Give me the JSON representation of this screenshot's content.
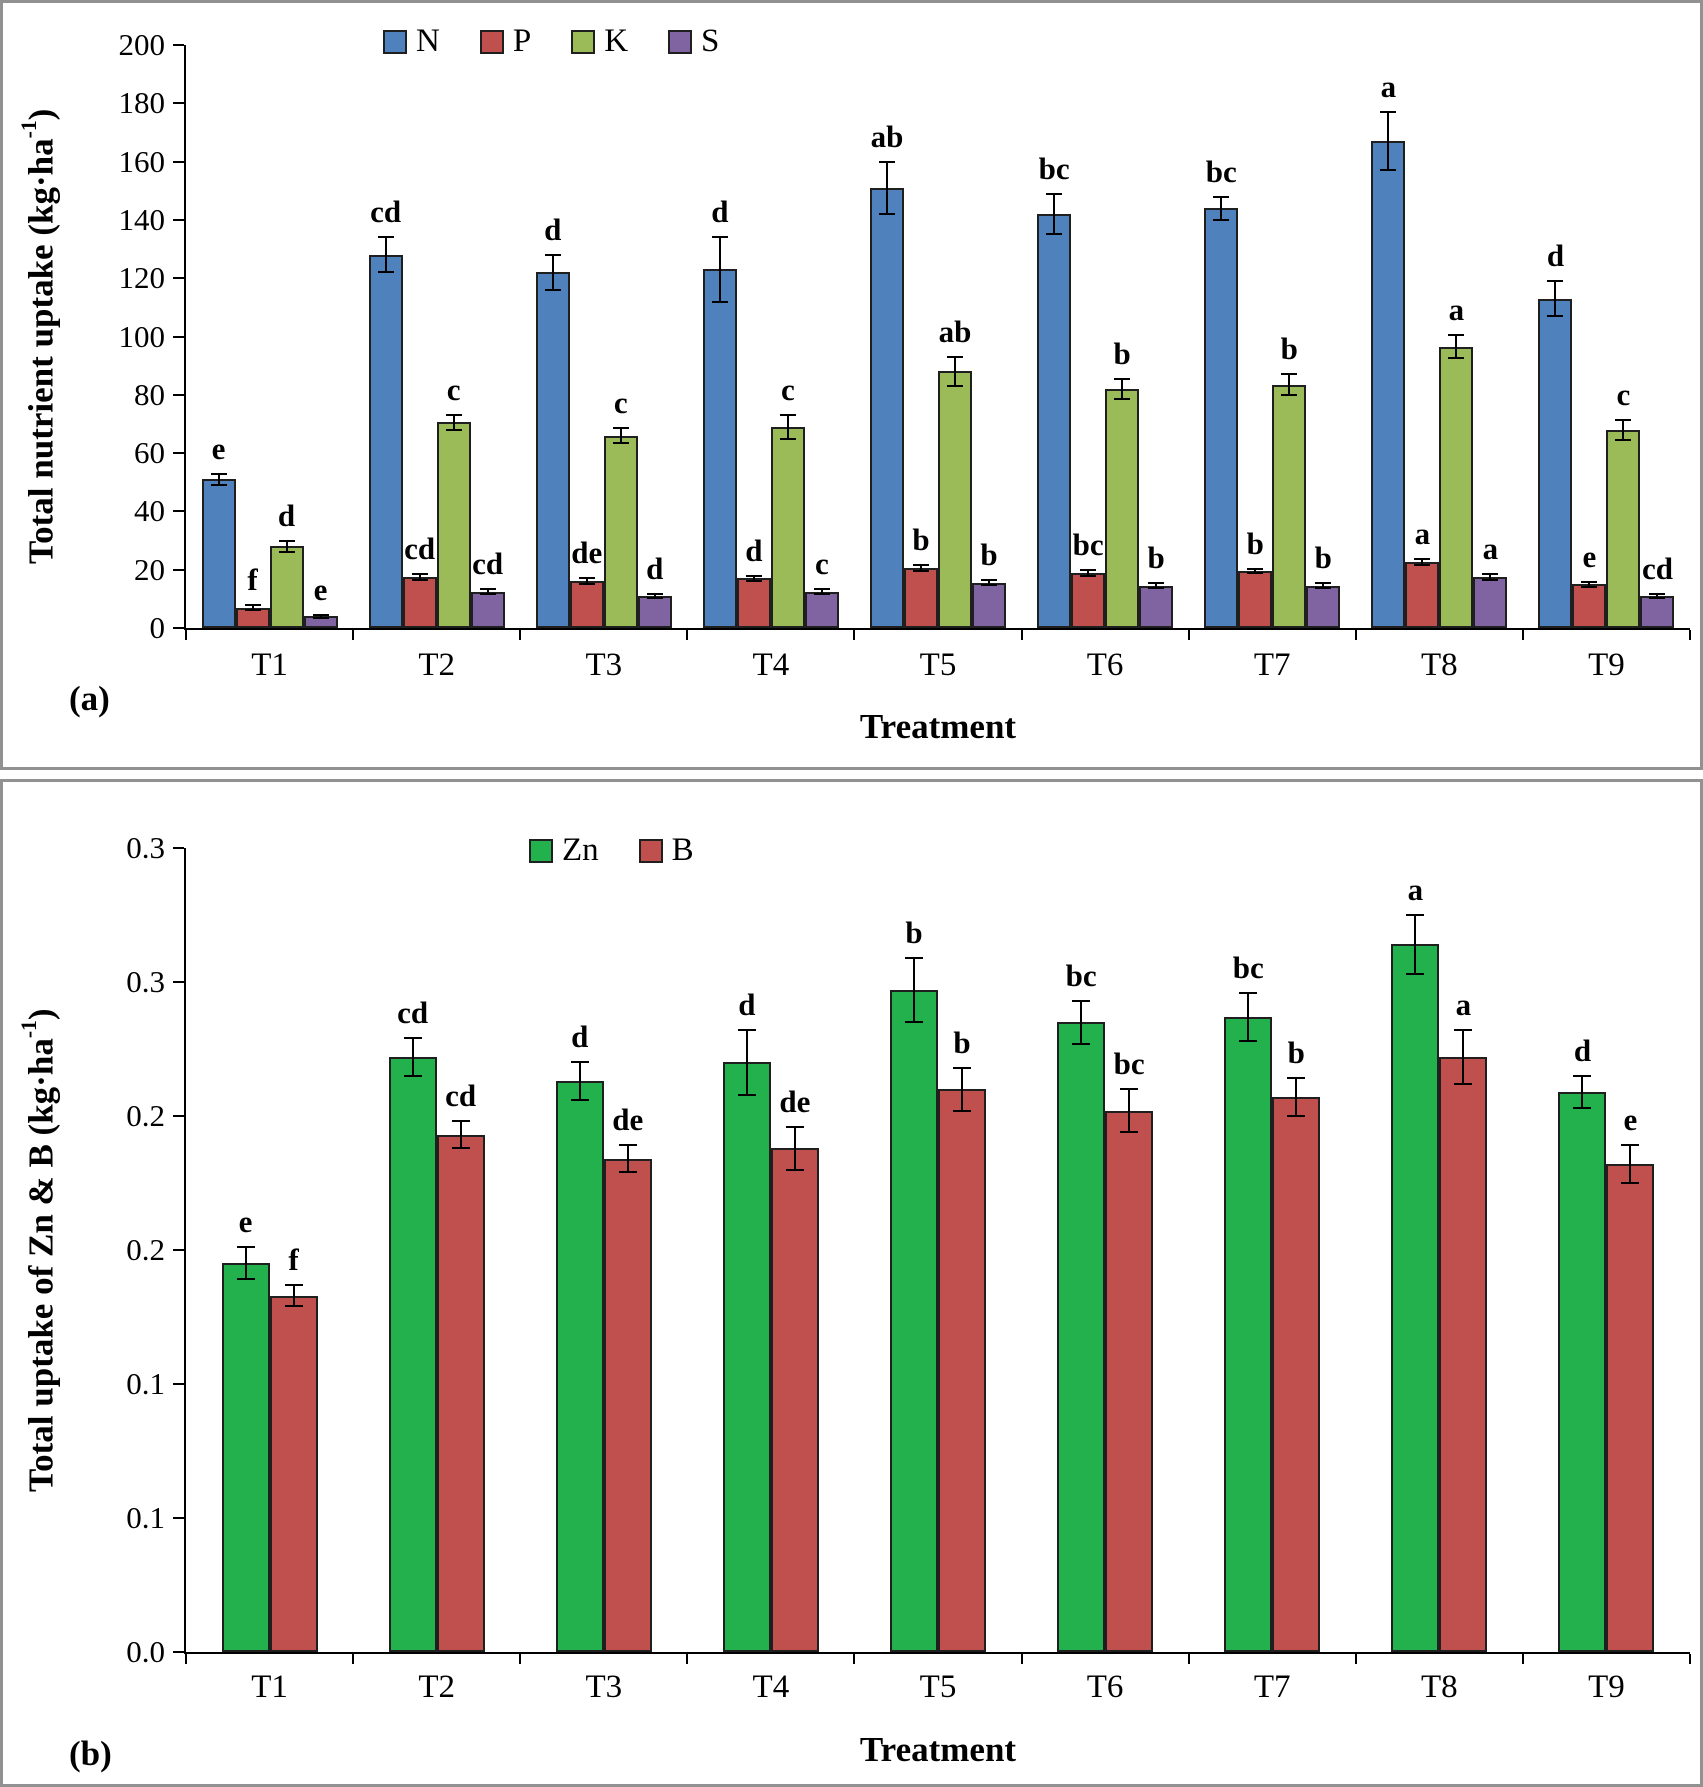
{
  "figure": {
    "panel_a_label": "(a)",
    "panel_b_label": "(b)"
  },
  "chart_data": [
    {
      "type": "bar",
      "panel": "a",
      "title": "",
      "xlabel": "Treatment",
      "ylabel_parts": {
        "text": "Total nutrient uptake (kg·ha",
        "sup": "-1",
        "close": ")"
      },
      "ylim": [
        0,
        200
      ],
      "ytick_step": 20,
      "ytick_labels": [
        "0",
        "20",
        "40",
        "60",
        "80",
        "100",
        "120",
        "140",
        "160",
        "180",
        "200"
      ],
      "categories": [
        "T1",
        "T2",
        "T3",
        "T4",
        "T5",
        "T6",
        "T7",
        "T8",
        "T9"
      ],
      "grid": false,
      "legend_position": "top-center",
      "series": [
        {
          "name": "N",
          "color": "#4F81BD",
          "values": [
            51,
            128,
            122,
            123,
            151,
            142,
            144,
            167,
            113
          ],
          "errors": [
            2,
            6,
            6,
            11,
            9,
            7,
            4,
            10,
            6
          ],
          "letters": [
            "e",
            "cd",
            "d",
            "d",
            "ab",
            "bc",
            "bc",
            "a",
            "d"
          ]
        },
        {
          "name": "P",
          "color": "#C0504D",
          "values": [
            7,
            17.5,
            16,
            17,
            20.5,
            19,
            19.5,
            22.5,
            15
          ],
          "errors": [
            0.8,
            1,
            1,
            1,
            1,
            1,
            0.8,
            1,
            0.8
          ],
          "letters": [
            "f",
            "cd",
            "de",
            "d",
            "b",
            "bc",
            "b",
            "a",
            "e"
          ]
        },
        {
          "name": "K",
          "color": "#9BBB59",
          "values": [
            28,
            70.5,
            66,
            69,
            88,
            82,
            83.5,
            96.5,
            68
          ],
          "errors": [
            2,
            2.5,
            2.5,
            4,
            5,
            3.5,
            3.5,
            4,
            3.5
          ],
          "letters": [
            "d",
            "c",
            "c",
            "c",
            "ab",
            "b",
            "b",
            "a",
            "c"
          ]
        },
        {
          "name": "S",
          "color": "#8064A2",
          "values": [
            4,
            12.5,
            11,
            12.5,
            15.5,
            14.5,
            14.5,
            17.5,
            11
          ],
          "errors": [
            0.5,
            0.8,
            0.8,
            0.8,
            0.8,
            0.8,
            0.8,
            1,
            0.8
          ],
          "letters": [
            "e",
            "cd",
            "d",
            "c",
            "b",
            "b",
            "b",
            "a",
            "cd"
          ]
        }
      ]
    },
    {
      "type": "bar",
      "panel": "b",
      "title": "",
      "xlabel": "Treatment",
      "ylabel_parts": {
        "text": "Total uptake of Zn & B (kg·ha",
        "sup": "-1",
        "close": ")"
      },
      "ylim": [
        0,
        0.3
      ],
      "ytick_step": 0.05,
      "ytick_labels": [
        "0.0",
        "0.1",
        "0.1",
        "0.2",
        "0.2",
        "0.3",
        "0.3"
      ],
      "categories": [
        "T1",
        "T2",
        "T3",
        "T4",
        "T5",
        "T6",
        "T7",
        "T8",
        "T9"
      ],
      "grid": false,
      "legend_position": "top-center",
      "series": [
        {
          "name": "Zn",
          "color": "#22B14C",
          "values": [
            0.145,
            0.222,
            0.213,
            0.22,
            0.247,
            0.235,
            0.237,
            0.264,
            0.209
          ],
          "errors": [
            0.006,
            0.007,
            0.007,
            0.012,
            0.012,
            0.008,
            0.009,
            0.011,
            0.006
          ],
          "letters": [
            "e",
            "cd",
            "d",
            "d",
            "b",
            "bc",
            "bc",
            "a",
            "d"
          ]
        },
        {
          "name": "B",
          "color": "#C0504D",
          "values": [
            0.133,
            0.193,
            0.184,
            0.188,
            0.21,
            0.202,
            0.207,
            0.222,
            0.182
          ],
          "errors": [
            0.004,
            0.005,
            0.005,
            0.008,
            0.008,
            0.008,
            0.007,
            0.01,
            0.007
          ],
          "letters": [
            "f",
            "cd",
            "de",
            "de",
            "b",
            "bc",
            "b",
            "a",
            "e"
          ]
        }
      ]
    }
  ]
}
